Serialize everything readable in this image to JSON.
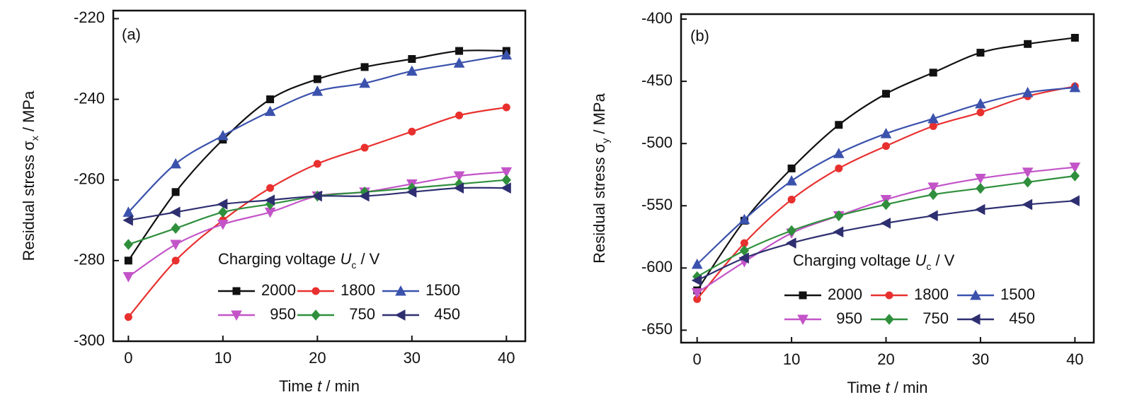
{
  "chart_data": [
    {
      "type": "line",
      "annotation": "(a)",
      "xlabel": {
        "main": "Time ",
        "var": "t",
        "unit": " / min"
      },
      "ylabel": {
        "main": "Residual stress σ",
        "sub": "x",
        "unit": " / MPa"
      },
      "legend_title": {
        "main": "Charging voltage ",
        "var": "U",
        "sub": "c",
        "unit": " / V"
      },
      "x": [
        0,
        5,
        10,
        15,
        20,
        25,
        30,
        35,
        40
      ],
      "xlim": [
        -1.6,
        42
      ],
      "xticks": [
        0,
        10,
        20,
        30,
        40
      ],
      "ylim": [
        -300,
        -218
      ],
      "yticks": [
        -300,
        -280,
        -260,
        -240,
        -220
      ],
      "series": [
        {
          "name": "2000",
          "color": "#111111",
          "marker": "square",
          "values": [
            -280,
            -263,
            -250,
            -240,
            -235,
            -232,
            -230,
            -228,
            -228
          ]
        },
        {
          "name": "1800",
          "color": "#e8302e",
          "marker": "circle",
          "values": [
            -294,
            -280,
            -270,
            -262,
            -256,
            -252,
            -248,
            -244,
            -242
          ]
        },
        {
          "name": "1500",
          "color": "#3b52ad",
          "marker": "triangle-up",
          "values": [
            -268,
            -256,
            -249,
            -243,
            -238,
            -236,
            -233,
            -231,
            -229
          ]
        },
        {
          "name": "950",
          "color": "#c354c8",
          "marker": "triangle-down",
          "values": [
            -284,
            -276,
            -271,
            -268,
            -264,
            -263,
            -261,
            -259,
            -258
          ]
        },
        {
          "name": "750",
          "color": "#2f8f3c",
          "marker": "diamond",
          "values": [
            -276,
            -272,
            -268,
            -266,
            -264,
            -263,
            -262,
            -261,
            -260
          ]
        },
        {
          "name": "450",
          "color": "#2e2f70",
          "marker": "triangle-left",
          "values": [
            -270,
            -268,
            -266,
            -265,
            -264,
            -264,
            -263,
            -262,
            -262
          ]
        }
      ]
    },
    {
      "type": "line",
      "annotation": "(b)",
      "xlabel": {
        "main": "Time ",
        "var": "t",
        "unit": " / min"
      },
      "ylabel": {
        "main": "Residual stress σ",
        "sub": "y",
        "unit": " / MPa"
      },
      "legend_title": {
        "main": "Charging voltage ",
        "var": "U",
        "sub": "c",
        "unit": " / V"
      },
      "x": [
        0,
        5,
        10,
        15,
        20,
        25,
        30,
        35,
        40
      ],
      "xlim": [
        -1.7,
        42
      ],
      "xticks": [
        0,
        10,
        20,
        30,
        40
      ],
      "ylim": [
        -660,
        -396
      ],
      "yticks": [
        -650,
        -600,
        -550,
        -500,
        -450,
        -400
      ],
      "series": [
        {
          "name": "2000",
          "color": "#111111",
          "marker": "square",
          "values": [
            -618,
            -562,
            -520,
            -485,
            -460,
            -443,
            -427,
            -420,
            -415
          ]
        },
        {
          "name": "1800",
          "color": "#e8302e",
          "marker": "circle",
          "values": [
            -625,
            -580,
            -545,
            -520,
            -502,
            -486,
            -475,
            -462,
            -454
          ]
        },
        {
          "name": "1500",
          "color": "#3b52ad",
          "marker": "triangle-up",
          "values": [
            -597,
            -561,
            -530,
            -508,
            -492,
            -480,
            -468,
            -459,
            -455
          ]
        },
        {
          "name": "950",
          "color": "#c354c8",
          "marker": "triangle-down",
          "values": [
            -620,
            -595,
            -572,
            -558,
            -545,
            -535,
            -528,
            -523,
            -519
          ]
        },
        {
          "name": "750",
          "color": "#2f8f3c",
          "marker": "diamond",
          "values": [
            -607,
            -586,
            -570,
            -558,
            -549,
            -541,
            -536,
            -531,
            -526
          ]
        },
        {
          "name": "450",
          "color": "#2e2f70",
          "marker": "triangle-left",
          "values": [
            -610,
            -592,
            -580,
            -571,
            -564,
            -558,
            -553,
            -549,
            -546
          ]
        }
      ]
    }
  ]
}
